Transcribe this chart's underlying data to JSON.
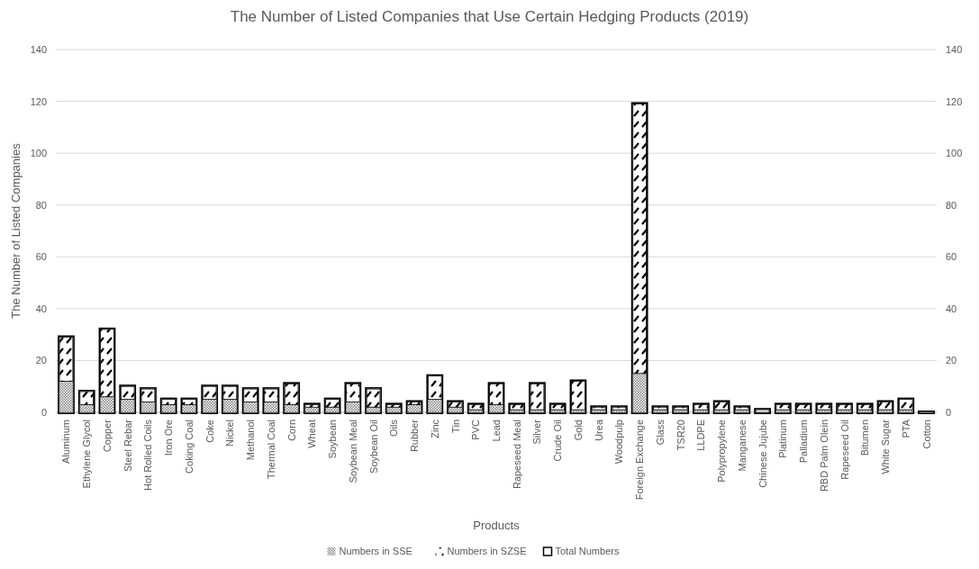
{
  "chart_data": {
    "type": "bar",
    "title": "The Number of Listed Companies that Use Certain Hedging Products (2019)",
    "xlabel": "Products",
    "ylabel": "The Number of Listed Companies",
    "categories": [
      "Aluminum",
      "Ethylene Glycol",
      "Copper",
      "Steel Rebar",
      "Hot Rolled Coils",
      "Iron Ore",
      "Coking Coal",
      "Coke",
      "Nickel",
      "Methanol",
      "Thermal Coal",
      "Corn",
      "Wheat",
      "Soybean",
      "Soybean Meal",
      "Soybean Oil",
      "Oils",
      "Rubber",
      "Zinc",
      "Tin",
      "PVC",
      "Lead",
      "Rapeseed Meal",
      "Silver",
      "Crude Oil",
      "Gold",
      "Urea",
      "Woodpulp",
      "Foreign Exchange",
      "Glass",
      "TSR20",
      "LLDPE",
      "Polypropylene",
      "Manganese",
      "Chinese Jujube",
      "Platinum",
      "Palladium",
      "RBD Palm Olein",
      "Rapeseed Oil",
      "Bitumen",
      "White Sugar",
      "PTA",
      "Cotton"
    ],
    "stacked": true,
    "series": [
      {
        "name": "Numbers in SSE",
        "color": "#7f7f7f",
        "values": [
          12,
          3,
          6,
          5,
          4,
          3,
          3,
          5,
          5,
          4,
          4,
          3,
          2,
          2,
          4,
          2,
          2,
          3,
          5,
          2,
          1,
          3,
          1,
          1,
          1,
          1,
          1,
          1,
          15,
          1,
          1,
          1,
          1,
          1,
          0,
          1,
          1,
          1,
          1,
          1,
          1,
          1,
          0
        ]
      },
      {
        "name": "Numbers in SZSE",
        "color": "#000000",
        "values": [
          17,
          5,
          26,
          5,
          5,
          2,
          2,
          5,
          5,
          5,
          5,
          8,
          1,
          3,
          7,
          7,
          1,
          1,
          9,
          2,
          2,
          8,
          2,
          10,
          2,
          11,
          1,
          1,
          104,
          1,
          1,
          2,
          3,
          1,
          1,
          2,
          2,
          2,
          2,
          2,
          3,
          4,
          0
        ]
      },
      {
        "name": "Total Numbers",
        "color": "#000000",
        "axis": "y2",
        "values": [
          29,
          8,
          32,
          10,
          9,
          5,
          5,
          10,
          10,
          9,
          9,
          11,
          3,
          5,
          11,
          9,
          3,
          4,
          14,
          4,
          3,
          11,
          3,
          11,
          3,
          12,
          2,
          2,
          119,
          2,
          2,
          3,
          4,
          2,
          1,
          3,
          3,
          3,
          3,
          3,
          4,
          5,
          0
        ]
      }
    ],
    "ylim": [
      0,
      140
    ],
    "yticks": [
      0,
      20,
      40,
      60,
      80,
      100,
      120,
      140
    ],
    "y2lim": [
      0,
      140
    ],
    "y2ticks": [
      0,
      20,
      40,
      60,
      80,
      100,
      120,
      140
    ],
    "grid": "y",
    "legend": "bottom"
  }
}
